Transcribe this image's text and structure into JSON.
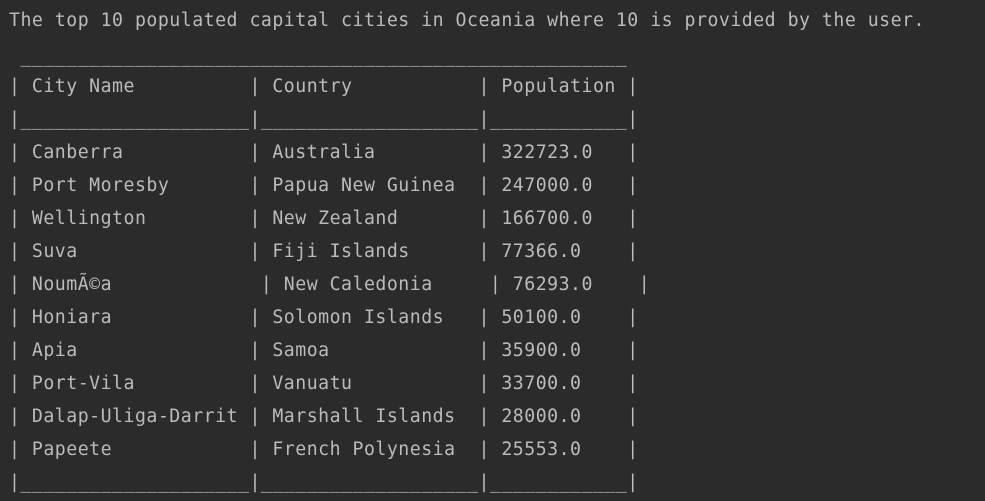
{
  "console": {
    "header_text": "The top 10 populated capital cities in Oceania where 10 is provided by the user.",
    "table_lines": [
      " _____________________________________________________",
      "| City Name          | Country           | Population |",
      "|____________________|___________________|____________|",
      "| Canberra           | Australia         | 322723.0   |",
      "| Port Moresby       | Papua New Guinea  | 247000.0   |",
      "| Wellington         | New Zealand       | 166700.0   |",
      "| Suva               | Fiji Islands      | 77366.0    |",
      "| NoumÃ©a             | New Caledonia     | 76293.0    |",
      "| Honiara            | Solomon Islands   | 50100.0    |",
      "| Apia               | Samoa             | 35900.0    |",
      "| Port-Vila          | Vanuatu           | 33700.0    |",
      "| Dalap-Uliga-Darrit | Marshall Islands  | 28000.0    |",
      "| Papeete            | French Polynesia  | 25553.0    |",
      "|____________________|___________________|____________|"
    ]
  }
}
